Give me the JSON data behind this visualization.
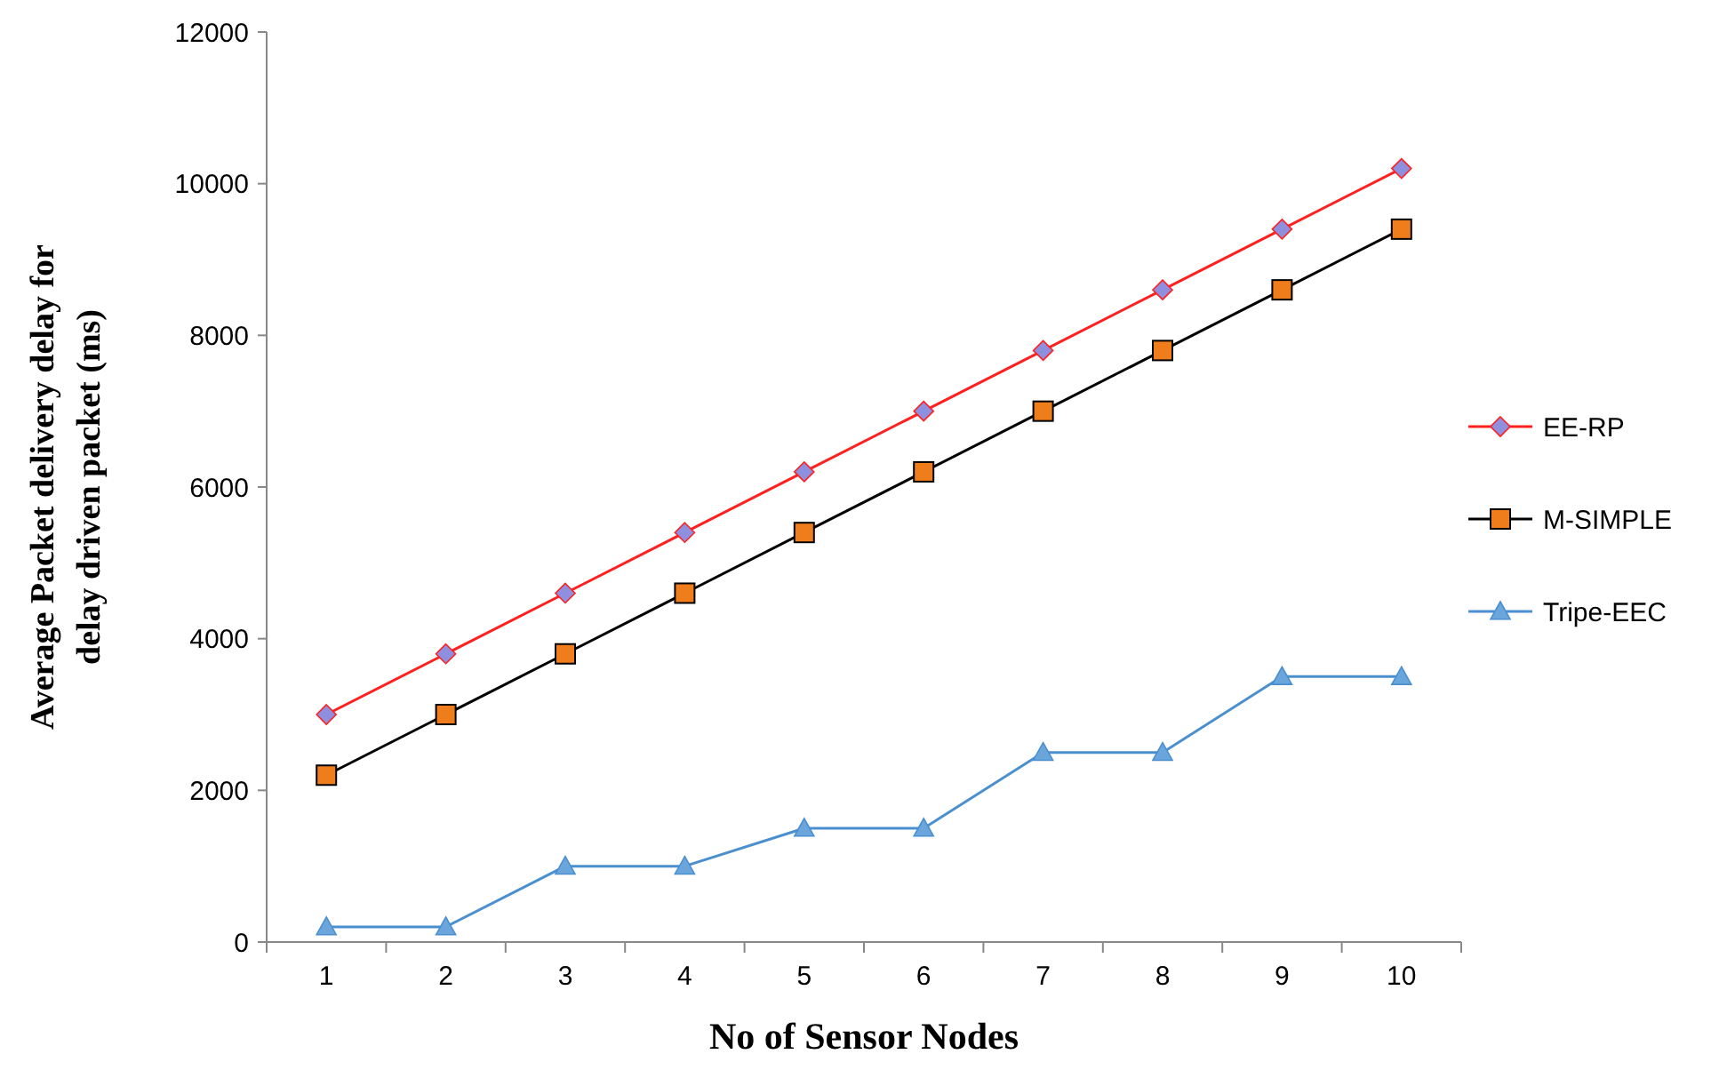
{
  "chart_data": {
    "type": "line",
    "xlabel": "No of Sensor Nodes",
    "ylabel": "Average Packet delivery delay for\ndelay driven packet (ms)",
    "categories": [
      "1",
      "2",
      "3",
      "4",
      "5",
      "6",
      "7",
      "8",
      "9",
      "10"
    ],
    "series": [
      {
        "name": "EE-RP",
        "color": "#ff2020",
        "marker": "diamond",
        "values": [
          3000,
          3800,
          4600,
          5400,
          6200,
          7000,
          7800,
          8600,
          9400,
          10200
        ]
      },
      {
        "name": "M-SIMPLE",
        "color": "#000000",
        "marker": "square",
        "values": [
          2200,
          3000,
          3800,
          4600,
          5400,
          6200,
          7000,
          7800,
          8600,
          9400
        ]
      },
      {
        "name": "Tripe-EEC",
        "color": "#4a8fd0",
        "marker": "triangle",
        "values": [
          200,
          200,
          1000,
          1000,
          1500,
          1500,
          2500,
          2500,
          3500,
          3500
        ]
      }
    ],
    "ylim": [
      0,
      12000
    ],
    "yticks": [
      0,
      2000,
      4000,
      6000,
      8000,
      10000,
      12000
    ],
    "grid": false,
    "legend": "right",
    "line_style": "solid"
  }
}
